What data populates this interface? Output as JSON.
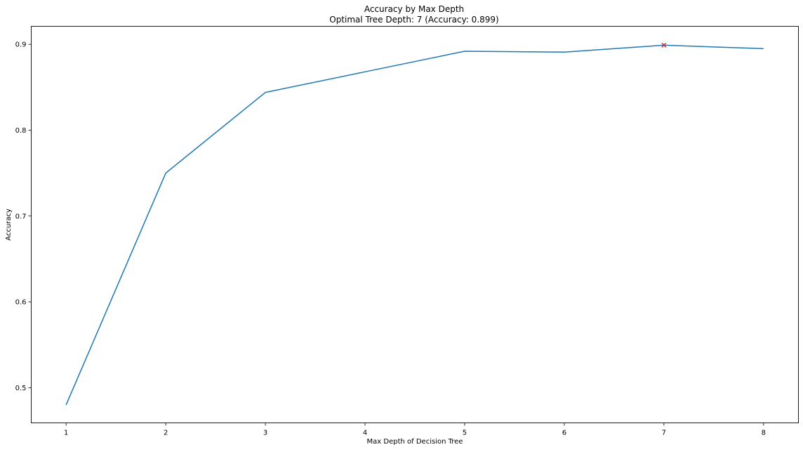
{
  "chart_data": {
    "type": "line",
    "title": "Accuracy by Max Depth",
    "subtitle": "Optimal Tree Depth: 7 (Accuracy: 0.899)",
    "xlabel": "Max Depth of Decision Tree",
    "ylabel": "Accuracy",
    "x": [
      1,
      2,
      3,
      4,
      5,
      6,
      7,
      8
    ],
    "series": [
      {
        "values": [
          0.48,
          0.75,
          0.844,
          0.868,
          0.892,
          0.891,
          0.899,
          0.895
        ],
        "color": "#1f77b4"
      }
    ],
    "optimal_marker": {
      "x": 7,
      "y": 0.899,
      "marker": "x",
      "color": "#d62728"
    },
    "xticks": [
      "1",
      "2",
      "3",
      "4",
      "5",
      "6",
      "7",
      "8"
    ],
    "yticks": [
      "0.5",
      "0.6",
      "0.7",
      "0.8",
      "0.9"
    ],
    "xlim": [
      0.65,
      8.35
    ],
    "ylim": [
      0.459,
      0.921
    ],
    "grid": false,
    "legend": "none"
  }
}
